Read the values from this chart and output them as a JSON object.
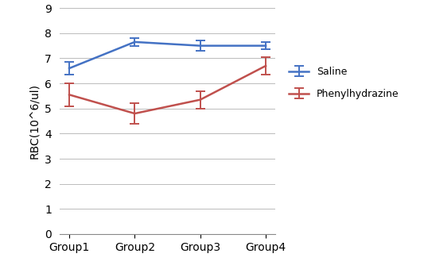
{
  "categories": [
    "Group1",
    "Group2",
    "Group3",
    "Group4"
  ],
  "saline_values": [
    6.6,
    7.65,
    7.5,
    7.5
  ],
  "saline_errors": [
    0.25,
    0.15,
    0.2,
    0.15
  ],
  "phenyl_values": [
    5.55,
    4.8,
    5.35,
    6.7
  ],
  "phenyl_errors": [
    0.45,
    0.4,
    0.35,
    0.35
  ],
  "saline_color": "#4472C4",
  "phenyl_color": "#C0504D",
  "ylabel": "RBC(10^6/ul)",
  "ylim": [
    0,
    9
  ],
  "yticks": [
    0,
    1,
    2,
    3,
    4,
    5,
    6,
    7,
    8,
    9
  ],
  "legend_saline": "Saline",
  "legend_phenyl": "Phenylhydrazine",
  "bg_color": "#ffffff",
  "grid_color": "#bbbbbb"
}
